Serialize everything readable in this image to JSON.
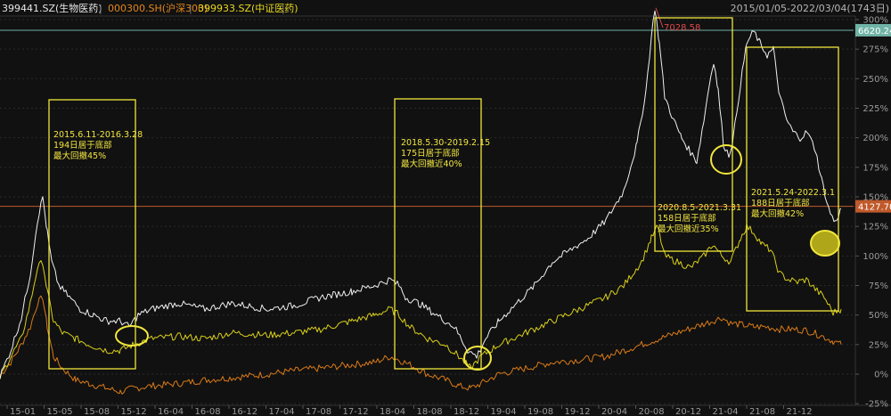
{
  "header": {
    "legend": [
      {
        "label": "399441.SZ(生物医药)",
        "color": "#e6e6e6"
      },
      {
        "label": "000300.SH(沪深300)",
        "color": "#e3871d"
      },
      {
        "label": "399933.SZ(中证医药)",
        "color": "#e6d81c"
      }
    ],
    "separator": "|",
    "range": "2015/01/05-2022/03/04(1743日)"
  },
  "chart_data": {
    "type": "line",
    "x_ticks": [
      "15-01",
      "15-05",
      "15-08",
      "15-12",
      "16-04",
      "16-08",
      "16-12",
      "17-04",
      "17-08",
      "17-12",
      "18-04",
      "18-08",
      "18-12",
      "19-04",
      "19-08",
      "19-12",
      "20-04",
      "20-08",
      "20-12",
      "21-04",
      "21-08",
      "21-12"
    ],
    "y_ticks": [
      "325%",
      "300%",
      "275%",
      "250%",
      "225%",
      "200%",
      "175%",
      "150%",
      "125%",
      "100%",
      "75%",
      "50%",
      "25%",
      "0%",
      "-25%"
    ],
    "ylim": [
      -25,
      325
    ],
    "ref_lines": [
      {
        "label": "6620.24",
        "pct": 291,
        "color": "#6fb3a6"
      },
      {
        "label": "4127.70",
        "pct": 142,
        "color": "#c0592b"
      }
    ],
    "peak_label": "7028.58",
    "series": [
      {
        "name": "399441.SZ(生物医药)",
        "color": "#f0f0f0",
        "points": [
          [
            0,
            -2
          ],
          [
            12,
            20
          ],
          [
            24,
            48
          ],
          [
            34,
            85
          ],
          [
            42,
            130
          ],
          [
            48,
            150
          ],
          [
            53,
            120
          ],
          [
            58,
            95
          ],
          [
            66,
            75
          ],
          [
            78,
            65
          ],
          [
            90,
            55
          ],
          [
            105,
            50
          ],
          [
            120,
            45
          ],
          [
            135,
            45
          ],
          [
            145,
            40
          ],
          [
            155,
            50
          ],
          [
            170,
            55
          ],
          [
            200,
            60
          ],
          [
            230,
            55
          ],
          [
            260,
            60
          ],
          [
            300,
            55
          ],
          [
            330,
            58
          ],
          [
            360,
            65
          ],
          [
            395,
            70
          ],
          [
            420,
            75
          ],
          [
            438,
            80
          ],
          [
            448,
            75
          ],
          [
            455,
            65
          ],
          [
            470,
            60
          ],
          [
            490,
            50
          ],
          [
            510,
            40
          ],
          [
            525,
            20
          ],
          [
            535,
            15
          ],
          [
            545,
            30
          ],
          [
            560,
            45
          ],
          [
            580,
            60
          ],
          [
            600,
            75
          ],
          [
            620,
            95
          ],
          [
            640,
            105
          ],
          [
            660,
            115
          ],
          [
            680,
            130
          ],
          [
            700,
            155
          ],
          [
            715,
            195
          ],
          [
            725,
            240
          ],
          [
            731,
            285
          ],
          [
            735,
            310
          ],
          [
            740,
            280
          ],
          [
            746,
            235
          ],
          [
            756,
            215
          ],
          [
            765,
            200
          ],
          [
            773,
            190
          ],
          [
            782,
            180
          ],
          [
            790,
            215
          ],
          [
            796,
            245
          ],
          [
            801,
            265
          ],
          [
            806,
            240
          ],
          [
            812,
            195
          ],
          [
            818,
            185
          ],
          [
            823,
            200
          ],
          [
            831,
            245
          ],
          [
            838,
            280
          ],
          [
            846,
            290
          ],
          [
            853,
            280
          ],
          [
            861,
            270
          ],
          [
            868,
            275
          ],
          [
            875,
            235
          ],
          [
            883,
            215
          ],
          [
            890,
            205
          ],
          [
            898,
            200
          ],
          [
            906,
            205
          ],
          [
            915,
            190
          ],
          [
            922,
            165
          ],
          [
            930,
            140
          ],
          [
            937,
            128
          ],
          [
            944,
            140
          ]
        ]
      },
      {
        "name": "399933.SZ(中证医药)",
        "color": "#d9cf1a",
        "points": [
          [
            0,
            -3
          ],
          [
            12,
            15
          ],
          [
            24,
            30
          ],
          [
            34,
            60
          ],
          [
            42,
            90
          ],
          [
            48,
            95
          ],
          [
            53,
            70
          ],
          [
            60,
            45
          ],
          [
            70,
            35
          ],
          [
            85,
            30
          ],
          [
            100,
            25
          ],
          [
            120,
            20
          ],
          [
            135,
            20
          ],
          [
            150,
            25
          ],
          [
            170,
            30
          ],
          [
            200,
            32
          ],
          [
            230,
            30
          ],
          [
            260,
            35
          ],
          [
            300,
            33
          ],
          [
            330,
            35
          ],
          [
            360,
            38
          ],
          [
            395,
            45
          ],
          [
            420,
            50
          ],
          [
            438,
            55
          ],
          [
            448,
            50
          ],
          [
            460,
            40
          ],
          [
            480,
            30
          ],
          [
            500,
            25
          ],
          [
            515,
            15
          ],
          [
            528,
            5
          ],
          [
            540,
            15
          ],
          [
            560,
            25
          ],
          [
            590,
            35
          ],
          [
            620,
            45
          ],
          [
            650,
            55
          ],
          [
            680,
            65
          ],
          [
            700,
            75
          ],
          [
            720,
            95
          ],
          [
            731,
            115
          ],
          [
            738,
            125
          ],
          [
            746,
            100
          ],
          [
            760,
            95
          ],
          [
            775,
            90
          ],
          [
            790,
            100
          ],
          [
            800,
            110
          ],
          [
            810,
            100
          ],
          [
            820,
            95
          ],
          [
            831,
            115
          ],
          [
            838,
            125
          ],
          [
            846,
            120
          ],
          [
            855,
            110
          ],
          [
            865,
            105
          ],
          [
            875,
            85
          ],
          [
            885,
            80
          ],
          [
            895,
            78
          ],
          [
            905,
            80
          ],
          [
            915,
            72
          ],
          [
            925,
            65
          ],
          [
            935,
            52
          ],
          [
            944,
            55
          ]
        ]
      },
      {
        "name": "000300.SH(沪深300)",
        "color": "#d97a18",
        "points": [
          [
            0,
            -1
          ],
          [
            12,
            10
          ],
          [
            24,
            25
          ],
          [
            34,
            40
          ],
          [
            42,
            60
          ],
          [
            48,
            65
          ],
          [
            53,
            40
          ],
          [
            60,
            15
          ],
          [
            70,
            5
          ],
          [
            85,
            -5
          ],
          [
            100,
            -8
          ],
          [
            120,
            -12
          ],
          [
            135,
            -15
          ],
          [
            150,
            -12
          ],
          [
            170,
            -10
          ],
          [
            200,
            -8
          ],
          [
            230,
            -5
          ],
          [
            260,
            -3
          ],
          [
            300,
            0
          ],
          [
            330,
            3
          ],
          [
            360,
            5
          ],
          [
            395,
            8
          ],
          [
            420,
            10
          ],
          [
            438,
            15
          ],
          [
            448,
            12
          ],
          [
            460,
            8
          ],
          [
            480,
            0
          ],
          [
            500,
            -5
          ],
          [
            515,
            -10
          ],
          [
            528,
            -12
          ],
          [
            540,
            -8
          ],
          [
            560,
            0
          ],
          [
            590,
            5
          ],
          [
            620,
            10
          ],
          [
            650,
            12
          ],
          [
            680,
            15
          ],
          [
            700,
            20
          ],
          [
            720,
            25
          ],
          [
            740,
            30
          ],
          [
            760,
            35
          ],
          [
            780,
            40
          ],
          [
            800,
            45
          ],
          [
            810,
            48
          ],
          [
            820,
            43
          ],
          [
            831,
            42
          ],
          [
            846,
            40
          ],
          [
            860,
            40
          ],
          [
            875,
            38
          ],
          [
            890,
            38
          ],
          [
            905,
            37
          ],
          [
            920,
            33
          ],
          [
            935,
            28
          ],
          [
            944,
            25
          ]
        ]
      }
    ],
    "annotations": [
      {
        "lines": [
          "2015.6.11-2016.3.28",
          "194日居于底部",
          "最大回撤45%"
        ]
      },
      {
        "lines": [
          "2018.5.30-2019.2.15",
          "175日居于底部",
          "最大回撤近40%"
        ]
      },
      {
        "lines": [
          "2020.8.5-2021.3.31",
          "158日居于底部",
          "最大回撤近35%"
        ]
      },
      {
        "lines": [
          "2021.5.24-2022.3.1",
          "188日居于底部",
          "最大回撤42%"
        ]
      }
    ]
  }
}
